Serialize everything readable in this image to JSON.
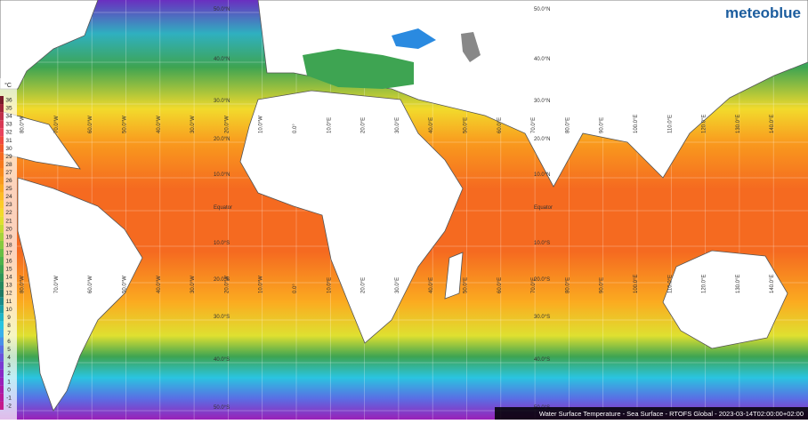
{
  "brand": "meteoblue",
  "caption": "Water Surface Temperature - Sea Surface - RTOFS Global - 2023-03-14T02:00:00+02:00",
  "legend": {
    "unit": "°C",
    "values": [
      36,
      35,
      34,
      33,
      32,
      31,
      30,
      29,
      28,
      27,
      26,
      25,
      24,
      23,
      22,
      21,
      20,
      19,
      18,
      17,
      16,
      15,
      14,
      13,
      12,
      11,
      10,
      9,
      8,
      7,
      6,
      5,
      4,
      3,
      2,
      1,
      0,
      -1,
      -2
    ],
    "colors": [
      "#7a1b2b",
      "#a0243a",
      "#c0304a",
      "#d83a55",
      "#e8445e",
      "#f04a40",
      "#f25a2a",
      "#f56a20",
      "#f7781c",
      "#f88a1c",
      "#f99a1e",
      "#fbab20",
      "#fcbc24",
      "#fdcc28",
      "#f2da2c",
      "#dfe030",
      "#c3dc34",
      "#a5d43a",
      "#86ca40",
      "#68be46",
      "#4fb24c",
      "#3ea452",
      "#2f9658",
      "#26885e",
      "#1f7a64",
      "#1a8a88",
      "#1aa0a8",
      "#1fb4c8",
      "#2ac4e0",
      "#3ab0ea",
      "#4a90e8",
      "#5a6ee4",
      "#6a50dc",
      "#7a3ad2",
      "#8a2ac6",
      "#9a20b8",
      "#aa1aa8",
      "#b8189a",
      "#c41a8c"
    ]
  },
  "lat_labels": [
    "50.0°N",
    "40.0°N",
    "30.0°N",
    "20.0°N",
    "10.0°N",
    "Equator",
    "10.0°S",
    "20.0°S",
    "30.0°S",
    "40.0°S",
    "50.0°S"
  ],
  "lon_labels": [
    "80.0°W",
    "70.0°W",
    "60.0°W",
    "50.0°W",
    "40.0°W",
    "30.0°W",
    "20.0°W",
    "10.0°W",
    "0.0°",
    "10.0°E",
    "20.0°E",
    "30.0°E",
    "40.0°E",
    "50.0°E",
    "60.0°E",
    "70.0°E",
    "80.0°E",
    "90.0°E",
    "100.0°E",
    "110.0°E",
    "120.0°E",
    "130.0°E",
    "140.0°E"
  ]
}
